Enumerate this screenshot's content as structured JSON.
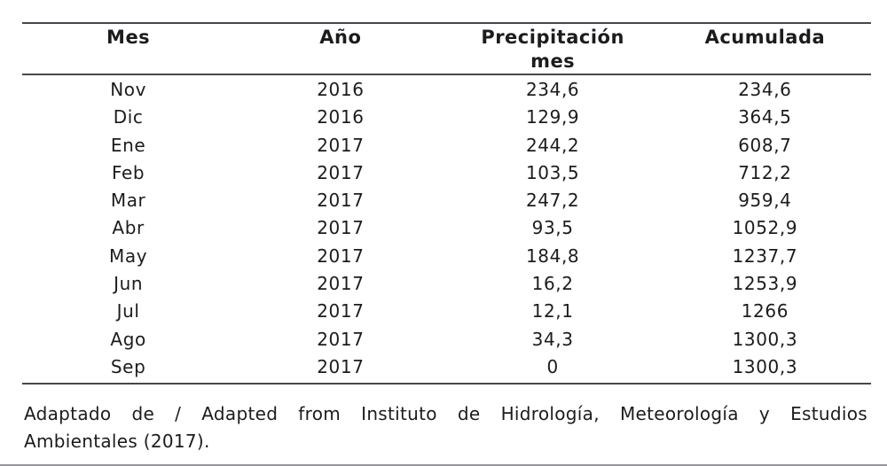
{
  "table": {
    "headers": [
      "Mes",
      "Año",
      "Precipitación\nmes",
      "Acumulada"
    ],
    "rows": [
      [
        "Nov",
        "2016",
        "234,6",
        "234,6"
      ],
      [
        "Dic",
        "2016",
        "129,9",
        "364,5"
      ],
      [
        "Ene",
        "2017",
        "244,2",
        "608,7"
      ],
      [
        "Feb",
        "2017",
        "103,5",
        "712,2"
      ],
      [
        "Mar",
        "2017",
        "247,2",
        "959,4"
      ],
      [
        "Abr",
        "2017",
        "93,5",
        "1052,9"
      ],
      [
        "May",
        "2017",
        "184,8",
        "1237,7"
      ],
      [
        "Jun",
        "2017",
        "16,2",
        "1253,9"
      ],
      [
        "Jul",
        "2017",
        "12,1",
        "1266"
      ],
      [
        "Ago",
        "2017",
        "34,3",
        "1300,3"
      ],
      [
        "Sep",
        "2017",
        "0",
        "1300,3"
      ]
    ]
  },
  "caption": {
    "line1": "Adaptado de / Adapted from Instituto de Hidrología, Meteorología y Estudios",
    "line2": "Ambientales (2017)."
  },
  "colors": {
    "text": "#1c1c1c",
    "table_rule": "#45474a",
    "page_rule": "#97979c"
  }
}
